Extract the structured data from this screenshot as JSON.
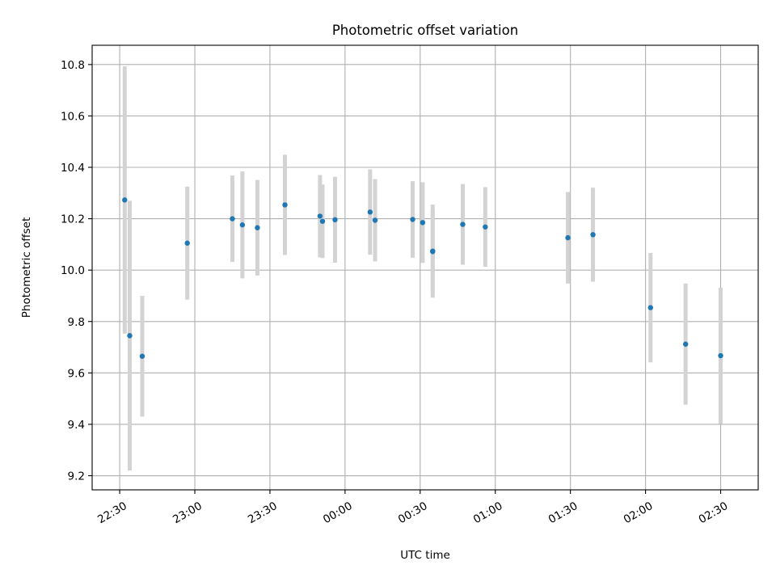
{
  "chart_data": {
    "type": "scatter",
    "title": "Photometric offset variation",
    "xlabel": "UTC time",
    "ylabel": "Photometric offset",
    "xlim": [
      "22:19",
      "02:45"
    ],
    "ylim": [
      9.145,
      10.875
    ],
    "grid": true,
    "x_ticks": [
      "22:30",
      "23:00",
      "23:30",
      "00:00",
      "00:30",
      "01:00",
      "01:30",
      "02:00",
      "02:30"
    ],
    "y_ticks": [
      9.2,
      9.4,
      9.6,
      9.8,
      10.0,
      10.2,
      10.4,
      10.6,
      10.8
    ],
    "y_tick_labels": [
      "9.2",
      "9.4",
      "9.6",
      "9.8",
      "10.0",
      "10.2",
      "10.4",
      "10.6",
      "10.8"
    ],
    "series": [
      {
        "marker_color": "#1f77b4",
        "errorbar_color": "#d3d3d3",
        "points": [
          {
            "x": "22:32",
            "y": 10.273,
            "err": 0.52
          },
          {
            "x": "22:34",
            "y": 9.745,
            "err": 0.525
          },
          {
            "x": "22:39",
            "y": 9.665,
            "err": 0.235
          },
          {
            "x": "22:57",
            "y": 10.105,
            "err": 0.22
          },
          {
            "x": "23:15",
            "y": 10.2,
            "err": 0.168
          },
          {
            "x": "23:19",
            "y": 10.176,
            "err": 0.208
          },
          {
            "x": "23:25",
            "y": 10.165,
            "err": 0.186
          },
          {
            "x": "23:36",
            "y": 10.254,
            "err": 0.195
          },
          {
            "x": "23:50",
            "y": 10.21,
            "err": 0.16
          },
          {
            "x": "23:51",
            "y": 10.19,
            "err": 0.143
          },
          {
            "x": "23:56",
            "y": 10.196,
            "err": 0.167
          },
          {
            "x": "00:10",
            "y": 10.226,
            "err": 0.166
          },
          {
            "x": "00:12",
            "y": 10.194,
            "err": 0.16
          },
          {
            "x": "00:27",
            "y": 10.197,
            "err": 0.149
          },
          {
            "x": "00:31",
            "y": 10.185,
            "err": 0.157
          },
          {
            "x": "00:35",
            "y": 10.074,
            "err": 0.181
          },
          {
            "x": "00:35",
            "y": 10.072,
            "err": 0.162
          },
          {
            "x": "00:47",
            "y": 10.178,
            "err": 0.157
          },
          {
            "x": "00:56",
            "y": 10.168,
            "err": 0.155
          },
          {
            "x": "01:29",
            "y": 10.126,
            "err": 0.178
          },
          {
            "x": "01:39",
            "y": 10.138,
            "err": 0.183
          },
          {
            "x": "02:02",
            "y": 9.854,
            "err": 0.213
          },
          {
            "x": "02:16",
            "y": 9.712,
            "err": 0.236
          },
          {
            "x": "02:30",
            "y": 9.667,
            "err": 0.265
          }
        ]
      }
    ]
  }
}
